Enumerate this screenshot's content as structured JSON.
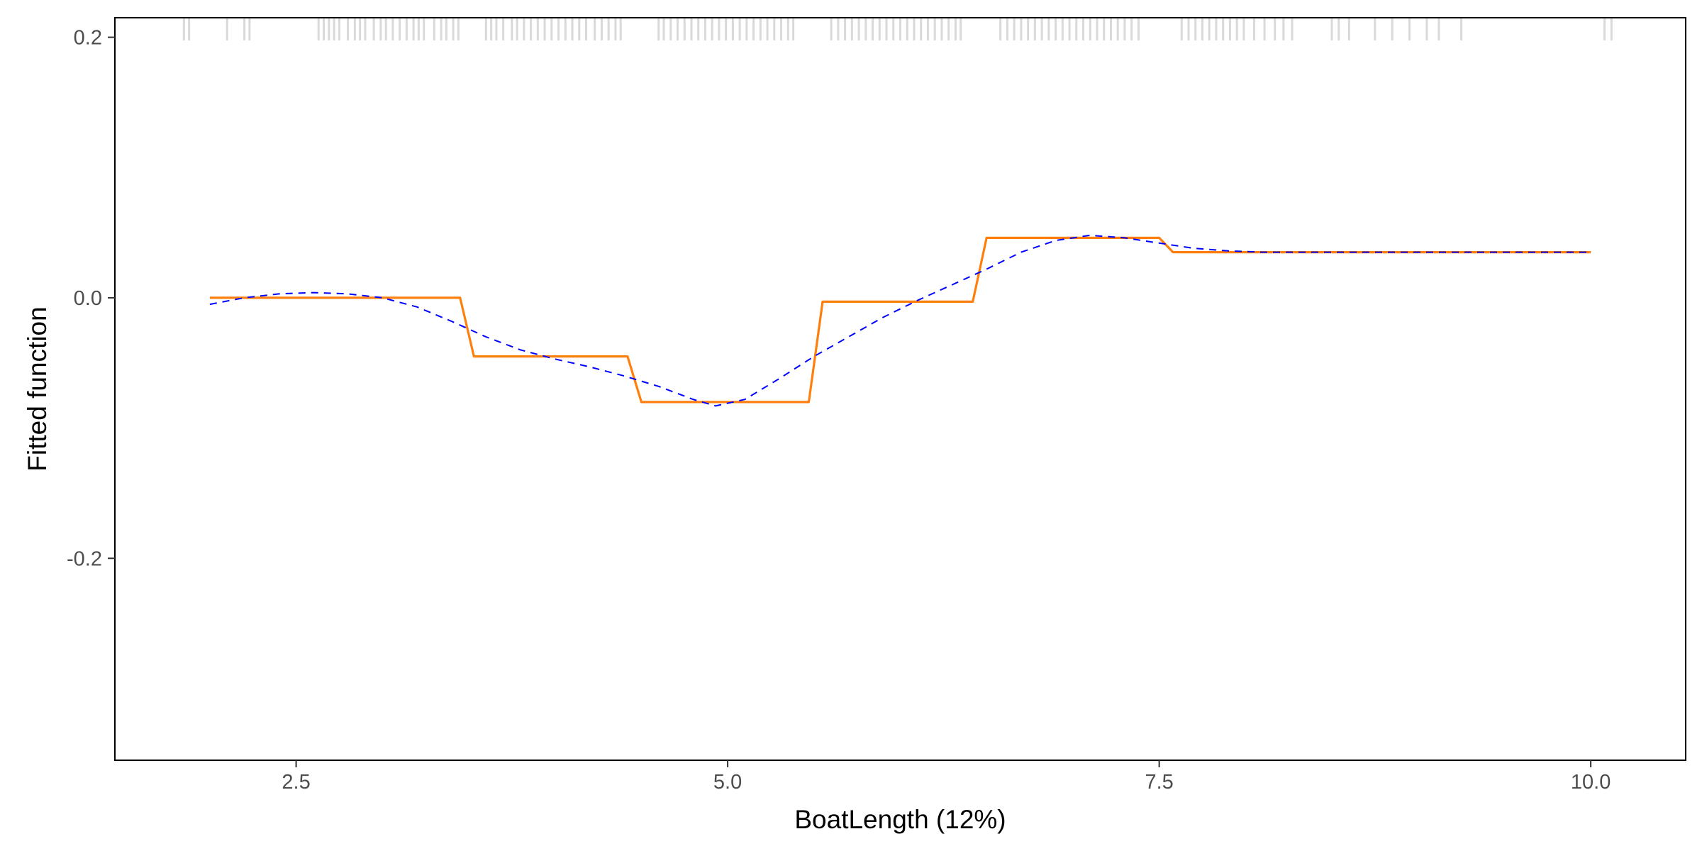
{
  "chart_data": {
    "type": "line",
    "xlabel": "BoatLength  (12%)",
    "ylabel": "Fitted function",
    "xlim": [
      1.45,
      10.55
    ],
    "ylim": [
      -0.355,
      0.215
    ],
    "x_ticks": [
      {
        "value": 2.5,
        "label": "2.5"
      },
      {
        "value": 5.0,
        "label": "5.0"
      },
      {
        "value": 7.5,
        "label": "7.5"
      },
      {
        "value": 10.0,
        "label": "10.0"
      }
    ],
    "y_ticks": [
      {
        "value": 0.2,
        "label": "0.2"
      },
      {
        "value": 0.0,
        "label": "0.0"
      },
      {
        "value": -0.2,
        "label": "-0.2"
      }
    ],
    "grid": false,
    "legend": "none",
    "colors": {
      "step_line": "#ff7f0e",
      "smooth_line": "#0000ff",
      "rug": "#d9d9d9",
      "axis": "#000000",
      "tick_text": "#4d4d4d"
    },
    "series": [
      {
        "style": "solid",
        "color": "#ff7f0e",
        "x": [
          2.0,
          3.45,
          3.53,
          4.42,
          4.5,
          5.47,
          5.55,
          6.42,
          6.5,
          7.5,
          7.58,
          10.0
        ],
        "y": [
          0.0,
          0.0,
          -0.045,
          -0.045,
          -0.08,
          -0.08,
          -0.003,
          -0.003,
          0.046,
          0.046,
          0.035,
          0.035
        ]
      },
      {
        "style": "dashed",
        "color": "#0000ff",
        "x": [
          2.0,
          2.2,
          2.4,
          2.6,
          2.8,
          3.0,
          3.2,
          3.4,
          3.6,
          3.8,
          4.0,
          4.2,
          4.4,
          4.6,
          4.8,
          4.93,
          5.1,
          5.3,
          5.5,
          5.7,
          5.9,
          6.1,
          6.3,
          6.5,
          6.7,
          6.9,
          7.1,
          7.3,
          7.5,
          7.7,
          7.9,
          8.1,
          8.3,
          8.5,
          9.0,
          9.5,
          10.0
        ],
        "y": [
          -0.005,
          0.0,
          0.003,
          0.004,
          0.003,
          0.0,
          -0.007,
          -0.018,
          -0.03,
          -0.04,
          -0.047,
          -0.053,
          -0.06,
          -0.068,
          -0.078,
          -0.083,
          -0.078,
          -0.062,
          -0.045,
          -0.03,
          -0.015,
          -0.002,
          0.01,
          0.022,
          0.035,
          0.044,
          0.048,
          0.046,
          0.042,
          0.038,
          0.036,
          0.035,
          0.035,
          0.035,
          0.035,
          0.035,
          0.035
        ]
      }
    ],
    "rug": [
      1.85,
      1.88,
      2.1,
      2.2,
      2.23,
      2.63,
      2.66,
      2.69,
      2.72,
      2.75,
      2.8,
      2.84,
      2.87,
      2.9,
      2.95,
      2.99,
      3.02,
      3.06,
      3.1,
      3.14,
      3.18,
      3.21,
      3.24,
      3.3,
      3.34,
      3.37,
      3.41,
      3.44,
      3.6,
      3.63,
      3.66,
      3.7,
      3.75,
      3.78,
      3.82,
      3.86,
      3.9,
      3.94,
      3.98,
      4.02,
      4.06,
      4.1,
      4.14,
      4.18,
      4.23,
      4.27,
      4.31,
      4.35,
      4.38,
      4.6,
      4.63,
      4.67,
      4.71,
      4.75,
      4.79,
      4.83,
      4.87,
      4.91,
      4.95,
      4.99,
      5.03,
      5.07,
      5.11,
      5.15,
      5.19,
      5.23,
      5.27,
      5.31,
      5.35,
      5.38,
      5.6,
      5.64,
      5.68,
      5.72,
      5.76,
      5.8,
      5.84,
      5.88,
      5.92,
      5.96,
      6.0,
      6.04,
      6.08,
      6.12,
      6.16,
      6.2,
      6.24,
      6.28,
      6.32,
      6.35,
      6.58,
      6.62,
      6.66,
      6.7,
      6.74,
      6.78,
      6.82,
      6.86,
      6.9,
      6.94,
      6.98,
      7.02,
      7.06,
      7.1,
      7.14,
      7.18,
      7.22,
      7.26,
      7.3,
      7.34,
      7.38,
      7.63,
      7.67,
      7.71,
      7.75,
      7.79,
      7.83,
      7.87,
      7.91,
      7.95,
      7.99,
      8.05,
      8.11,
      8.17,
      8.22,
      8.27,
      8.5,
      8.54,
      8.6,
      8.75,
      8.85,
      8.95,
      9.05,
      9.12,
      9.25,
      10.08,
      10.12
    ]
  }
}
